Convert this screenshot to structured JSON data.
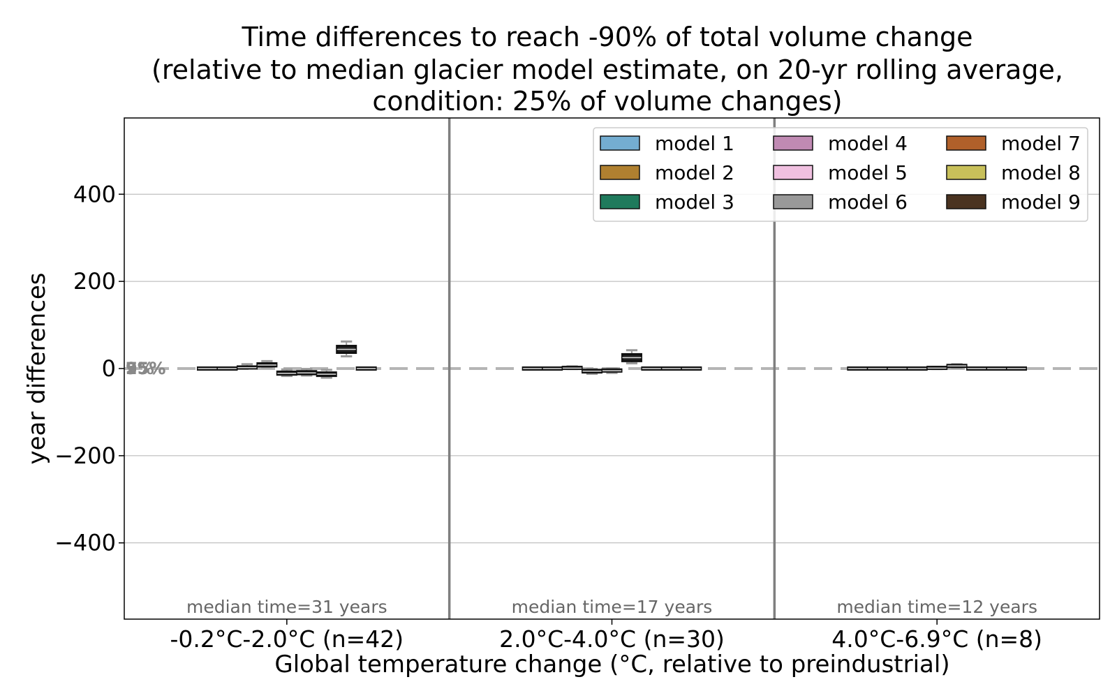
{
  "chart_data": {
    "type": "box",
    "title_lines": [
      "Time differences to reach -90% of total volume change",
      "(relative to median glacier model estimate, on 20-yr rolling average,",
      "condition: 25% of volume changes)"
    ],
    "xlabel": "Global temperature change (°C, relative to preindustrial)",
    "ylabel": "year differences",
    "ylim": [
      -575,
      575
    ],
    "yticks": [
      {
        "value": 400,
        "label": "400"
      },
      {
        "value": 200,
        "label": "200"
      },
      {
        "value": 0,
        "label": "0"
      },
      {
        "value": -200,
        "label": "−200"
      },
      {
        "value": -400,
        "label": "−400"
      }
    ],
    "grid": "horizontal",
    "legend_position": "top-right",
    "percentile_labels": [
      "5%",
      "25%",
      "75%",
      "95%"
    ],
    "series": [
      {
        "name": "model 1",
        "color": "#74add1"
      },
      {
        "name": "model 2",
        "color": "#b08030"
      },
      {
        "name": "model 3",
        "color": "#1f7a5c"
      },
      {
        "name": "model 4",
        "color": "#c08ab3"
      },
      {
        "name": "model 5",
        "color": "#f0c0e0"
      },
      {
        "name": "model 6",
        "color": "#999999"
      },
      {
        "name": "model 7",
        "color": "#b0602a"
      },
      {
        "name": "model 8",
        "color": "#c8c05a"
      },
      {
        "name": "model 9",
        "color": "#4a3320"
      }
    ],
    "groups": [
      {
        "label": "-0.2°C-2.0°C (n=42)",
        "median_text": "median time=31 years",
        "boxes": [
          {
            "model": "model 1",
            "q1": -1,
            "median": 0,
            "q3": 1,
            "whisker_low": -2,
            "whisker_high": 2
          },
          {
            "model": "model 2",
            "q1": -1,
            "median": 0,
            "q3": 1,
            "whisker_low": -2,
            "whisker_high": 2
          },
          {
            "model": "model 3",
            "q1": 1,
            "median": 2,
            "q3": 4,
            "whisker_low": 0,
            "whisker_high": 10
          },
          {
            "model": "model 4",
            "q1": 5,
            "median": 8,
            "q3": 12,
            "whisker_low": 3,
            "whisker_high": 17
          },
          {
            "model": "model 5",
            "q1": -14,
            "median": -11,
            "q3": -7,
            "whisker_low": -17,
            "whisker_high": -2
          },
          {
            "model": "model 6",
            "q1": -13,
            "median": -10,
            "q3": -6,
            "whisker_low": -16,
            "whisker_high": -1
          },
          {
            "model": "model 7",
            "q1": -17,
            "median": -13,
            "q3": -9,
            "whisker_low": -21,
            "whisker_high": -3
          },
          {
            "model": "model 8",
            "q1": 36,
            "median": 44,
            "q3": 52,
            "whisker_low": 28,
            "whisker_high": 62
          },
          {
            "model": "model 9",
            "q1": -1,
            "median": 0,
            "q3": 1,
            "whisker_low": -2,
            "whisker_high": 2
          }
        ]
      },
      {
        "label": "2.0°C-4.0°C (n=30)",
        "median_text": "median time=17 years",
        "boxes": [
          {
            "model": "model 1",
            "q1": -1,
            "median": 0,
            "q3": 1,
            "whisker_low": -2,
            "whisker_high": 2
          },
          {
            "model": "model 2",
            "q1": -1,
            "median": 0,
            "q3": 1,
            "whisker_low": -2,
            "whisker_high": 2
          },
          {
            "model": "model 3",
            "q1": 0,
            "median": 1,
            "q3": 3,
            "whisker_low": -1,
            "whisker_high": 5
          },
          {
            "model": "model 4",
            "q1": -9,
            "median": -6,
            "q3": -3,
            "whisker_low": -12,
            "whisker_high": -1
          },
          {
            "model": "model 5",
            "q1": -7,
            "median": -5,
            "q3": -2,
            "whisker_low": -10,
            "whisker_high": 0
          },
          {
            "model": "model 6",
            "q1": 17,
            "median": 25,
            "q3": 33,
            "whisker_low": 12,
            "whisker_high": 42
          },
          {
            "model": "model 7",
            "q1": -1,
            "median": 0,
            "q3": 1,
            "whisker_low": -2,
            "whisker_high": 2
          },
          {
            "model": "model 8",
            "q1": -1,
            "median": 0,
            "q3": 1,
            "whisker_low": -2,
            "whisker_high": 2
          },
          {
            "model": "model 9",
            "q1": -1,
            "median": 0,
            "q3": 1,
            "whisker_low": -2,
            "whisker_high": 2
          }
        ]
      },
      {
        "label": "4.0°C-6.9°C (n=8)",
        "median_text": "median time=12 years",
        "boxes": [
          {
            "model": "model 1",
            "q1": -1,
            "median": 0,
            "q3": 1,
            "whisker_low": -2,
            "whisker_high": 2
          },
          {
            "model": "model 2",
            "q1": -1,
            "median": 0,
            "q3": 1,
            "whisker_low": -2,
            "whisker_high": 2
          },
          {
            "model": "model 3",
            "q1": -1,
            "median": 0,
            "q3": 1,
            "whisker_low": -2,
            "whisker_high": 2
          },
          {
            "model": "model 4",
            "q1": -1,
            "median": 0,
            "q3": 1,
            "whisker_low": -2,
            "whisker_high": 2
          },
          {
            "model": "model 5",
            "q1": 0,
            "median": 1,
            "q3": 3,
            "whisker_low": -1,
            "whisker_high": 4
          },
          {
            "model": "model 6",
            "q1": 4,
            "median": 6,
            "q3": 8,
            "whisker_low": 2,
            "whisker_high": 10
          },
          {
            "model": "model 7",
            "q1": -1,
            "median": 0,
            "q3": 1,
            "whisker_low": -2,
            "whisker_high": 2
          },
          {
            "model": "model 8",
            "q1": -1,
            "median": 0,
            "q3": 1,
            "whisker_low": -2,
            "whisker_high": 2
          },
          {
            "model": "model 9",
            "q1": -1,
            "median": 0,
            "q3": 1,
            "whisker_low": -2,
            "whisker_high": 2
          }
        ]
      }
    ]
  }
}
